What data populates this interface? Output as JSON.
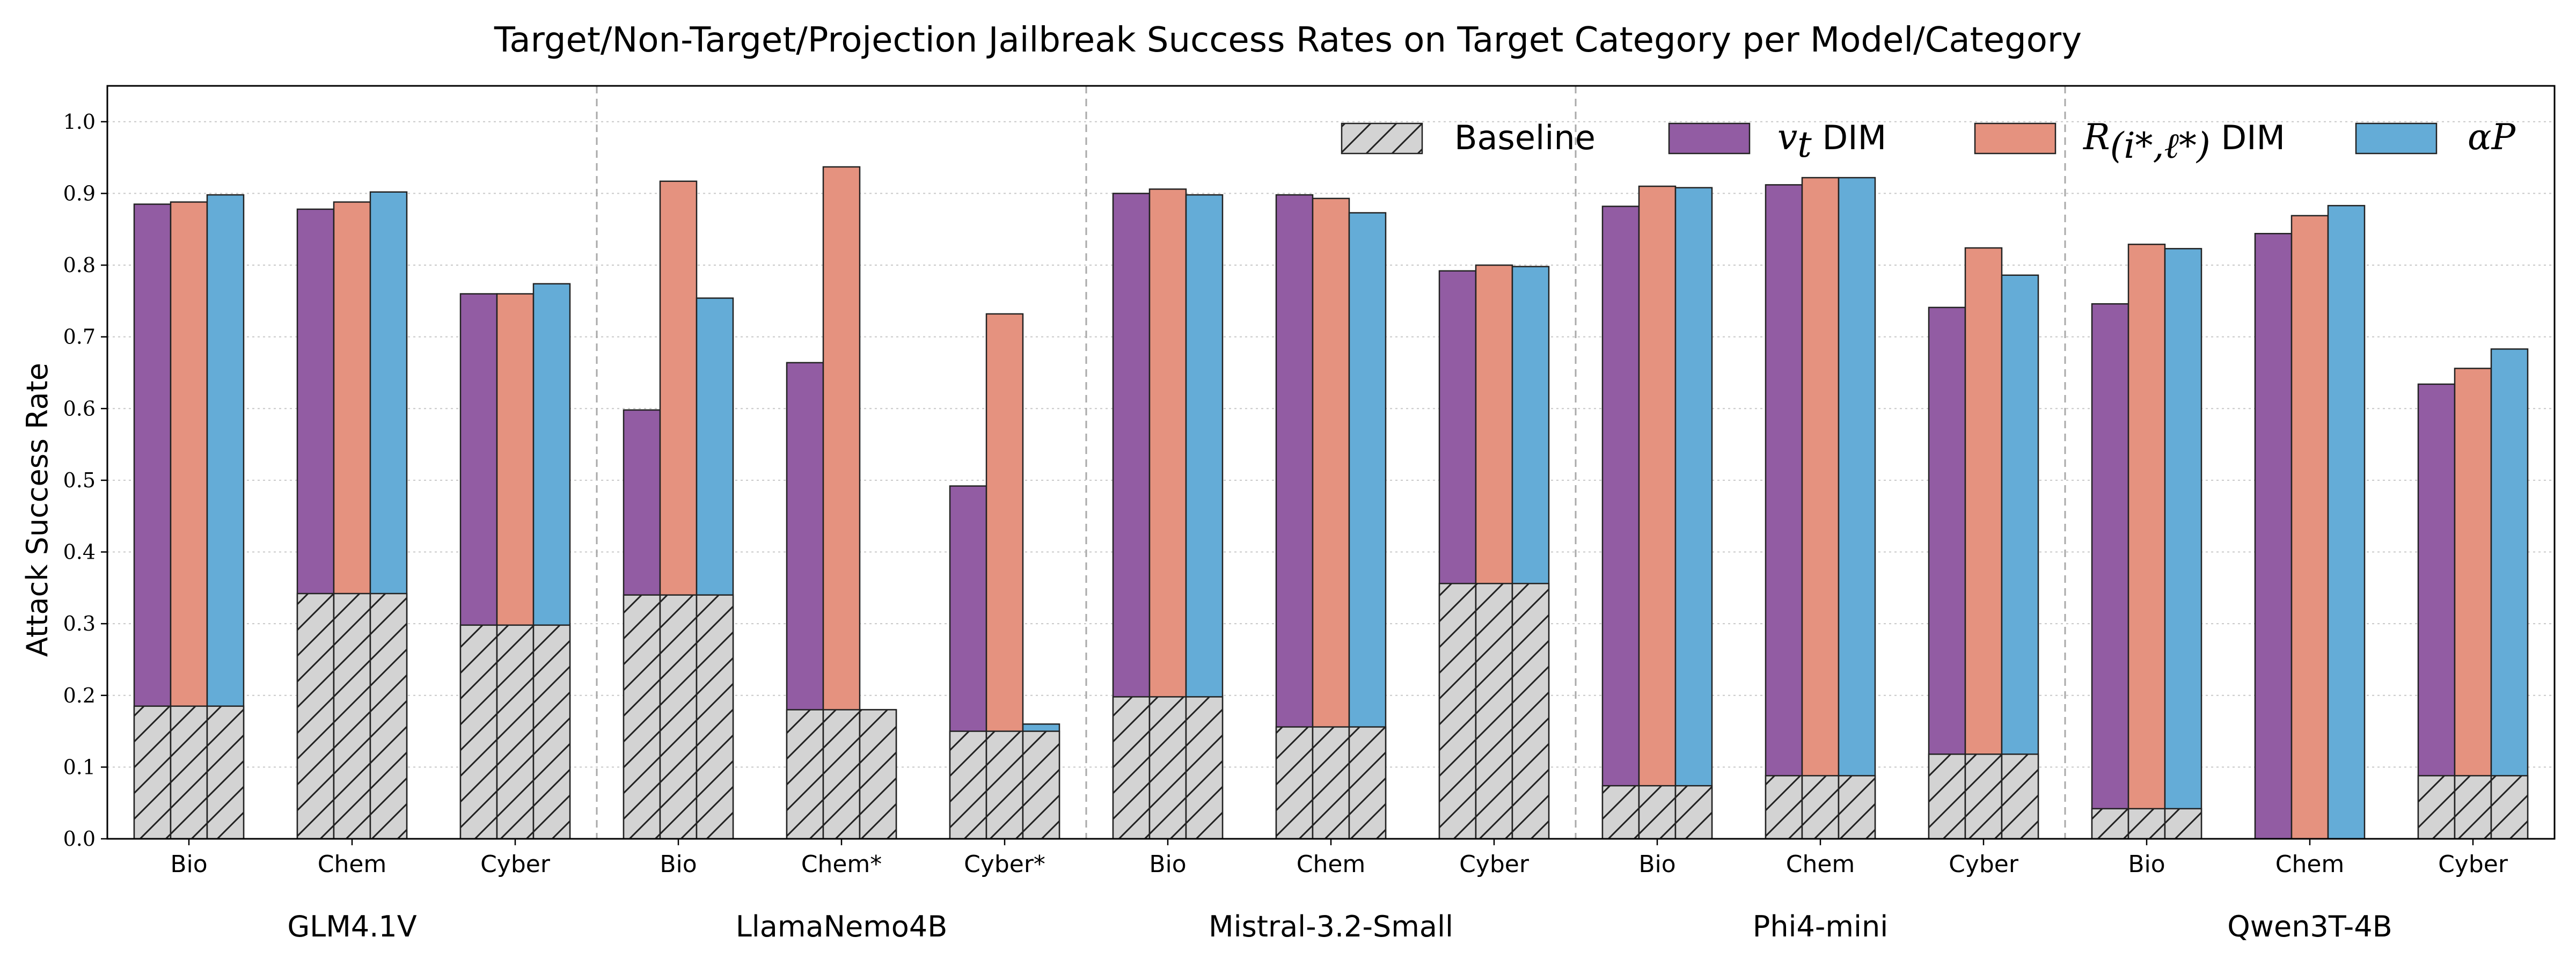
{
  "chart_data": {
    "type": "bar",
    "title": "Target/Non-Target/Projection Jailbreak Success Rates on Target Category per Model/Category",
    "ylabel": "Attack Success Rate",
    "ylim": [
      0,
      1.05
    ],
    "yticks": [
      "0.0",
      "0.1",
      "0.2",
      "0.3",
      "0.4",
      "0.5",
      "0.6",
      "0.7",
      "0.8",
      "0.9",
      "1.0"
    ],
    "grid": "y-dotted",
    "legend_position": "top-right",
    "legend": {
      "baseline": "Baseline",
      "vt_sym": "v",
      "vt_sub": "t",
      "vt_rest": " DIM",
      "r_sym": "R",
      "r_sub": "(i*,ℓ*)",
      "r_rest": " DIM",
      "ap_sym": "αP"
    },
    "colors": {
      "vt": "#925ca3",
      "r": "#e5927f",
      "ap": "#64acd7",
      "baseline": "#d3d3d3"
    },
    "models": [
      {
        "name": "GLM4.1V",
        "categories": [
          {
            "label": "Bio",
            "baseline": 0.185,
            "vt": 0.885,
            "r": 0.888,
            "ap": 0.898
          },
          {
            "label": "Chem",
            "baseline": 0.342,
            "vt": 0.878,
            "r": 0.888,
            "ap": 0.902
          },
          {
            "label": "Cyber",
            "baseline": 0.298,
            "vt": 0.76,
            "r": 0.76,
            "ap": 0.774
          }
        ]
      },
      {
        "name": "LlamaNemo4B",
        "categories": [
          {
            "label": "Bio",
            "baseline": 0.34,
            "vt": 0.598,
            "r": 0.917,
            "ap": 0.754
          },
          {
            "label": "Chem*",
            "baseline": 0.18,
            "vt": 0.664,
            "r": 0.937,
            "ap": 0.18
          },
          {
            "label": "Cyber*",
            "baseline": 0.15,
            "vt": 0.492,
            "r": 0.732,
            "ap": 0.16
          }
        ]
      },
      {
        "name": "Mistral-3.2-Small",
        "categories": [
          {
            "label": "Bio",
            "baseline": 0.198,
            "vt": 0.9,
            "r": 0.906,
            "ap": 0.898
          },
          {
            "label": "Chem",
            "baseline": 0.156,
            "vt": 0.898,
            "r": 0.893,
            "ap": 0.873
          },
          {
            "label": "Cyber",
            "baseline": 0.356,
            "vt": 0.792,
            "r": 0.8,
            "ap": 0.798
          }
        ]
      },
      {
        "name": "Phi4-mini",
        "categories": [
          {
            "label": "Bio",
            "baseline": 0.074,
            "vt": 0.882,
            "r": 0.91,
            "ap": 0.908
          },
          {
            "label": "Chem",
            "baseline": 0.088,
            "vt": 0.912,
            "r": 0.922,
            "ap": 0.922
          },
          {
            "label": "Cyber",
            "baseline": 0.118,
            "vt": 0.741,
            "r": 0.824,
            "ap": 0.786
          }
        ]
      },
      {
        "name": "Qwen3T-4B",
        "categories": [
          {
            "label": "Bio",
            "baseline": 0.042,
            "vt": 0.746,
            "r": 0.829,
            "ap": 0.823
          },
          {
            "label": "Chem",
            "baseline": 0.0,
            "vt": 0.844,
            "r": 0.869,
            "ap": 0.883
          },
          {
            "label": "Cyber",
            "baseline": 0.088,
            "vt": 0.634,
            "r": 0.656,
            "ap": 0.683
          }
        ]
      }
    ]
  }
}
